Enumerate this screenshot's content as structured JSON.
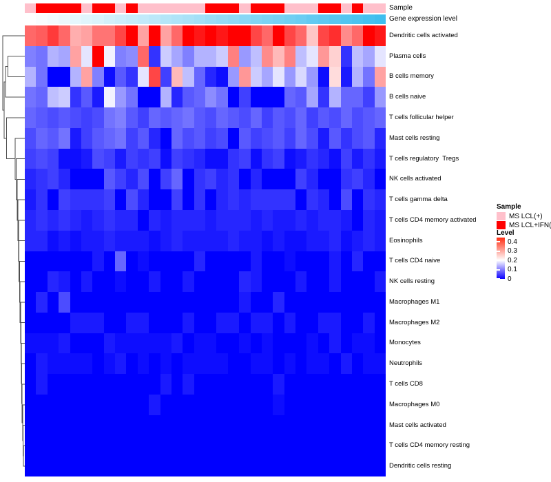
{
  "figure": {
    "annotation_row_labels": {
      "sample": "Sample",
      "gene": "Gene expression level"
    }
  },
  "legend": {
    "sample": {
      "title": "Sample",
      "items": [
        {
          "label": "MS LCL(+)",
          "color": "#FFC0CB"
        },
        {
          "label": "MS LCL+IFN(+)",
          "color": "#FF0000"
        }
      ]
    },
    "level": {
      "title": "Level",
      "ticks": [
        "0.4",
        "0.3",
        "0.2",
        "0.1",
        "0"
      ]
    }
  },
  "chart_data": {
    "type": "heatmap",
    "title": "",
    "xlabel": "",
    "ylabel": "",
    "grid": false,
    "legend_position": "right",
    "n_columns": 32,
    "column_labels_shown": false,
    "color_scale": {
      "min": 0,
      "mid_white": 0.2,
      "max": 0.42,
      "min_color": "#0000FF",
      "mid_color": "#FFFFFF",
      "max_color": "#FF0000"
    },
    "rows": [
      "Dendritic cells activated",
      "Plasma cells",
      "B cells memory",
      "B cells naive",
      "T cells follicular helper",
      "Mast cells resting",
      "T cells regulatory  Tregs",
      "NK cells activated",
      "T cells gamma delta",
      "T cells CD4 memory activated",
      "Eosinophils",
      "T cells CD4 naive",
      "NK cells resting",
      "Macrophages M1",
      "Macrophages M2",
      "Monocytes",
      "Neutrophils",
      "T cells CD8",
      "Macrophages M0",
      "Mast cells activated",
      "T cells CD4 memory resting",
      "Dendritic cells resting"
    ],
    "column_annotations": {
      "sample_color_map": {
        "MS LCL(+)": "#FFC0CB",
        "MS LCL+IFN(+)": "#FF0000"
      },
      "sample": [
        "MS LCL(+)",
        "MS LCL+IFN(+)",
        "MS LCL+IFN(+)",
        "MS LCL+IFN(+)",
        "MS LCL+IFN(+)",
        "MS LCL(+)",
        "MS LCL+IFN(+)",
        "MS LCL+IFN(+)",
        "MS LCL(+)",
        "MS LCL+IFN(+)",
        "MS LCL(+)",
        "MS LCL(+)",
        "MS LCL(+)",
        "MS LCL(+)",
        "MS LCL(+)",
        "MS LCL(+)",
        "MS LCL+IFN(+)",
        "MS LCL+IFN(+)",
        "MS LCL+IFN(+)",
        "MS LCL(+)",
        "MS LCL+IFN(+)",
        "MS LCL+IFN(+)",
        "MS LCL+IFN(+)",
        "MS LCL(+)",
        "MS LCL(+)",
        "MS LCL(+)",
        "MS LCL+IFN(+)",
        "MS LCL+IFN(+)",
        "MS LCL(+)",
        "MS LCL+IFN(+)",
        "MS LCL(+)",
        "MS LCL(+)"
      ],
      "gene_expression_level_gradient": {
        "low_color": "#FFFFFF",
        "high_color": "#3FBEEE"
      },
      "gene_expression_level": [
        0,
        0.03,
        0.06,
        0.1,
        0.13,
        0.16,
        0.19,
        0.23,
        0.26,
        0.29,
        0.32,
        0.35,
        0.39,
        0.42,
        0.45,
        0.48,
        0.52,
        0.55,
        0.58,
        0.61,
        0.65,
        0.68,
        0.71,
        0.74,
        0.77,
        0.81,
        0.84,
        0.87,
        0.9,
        0.93,
        0.97,
        1
      ]
    },
    "values": [
      [
        0.33,
        0.34,
        0.37,
        0.33,
        0.27,
        0.28,
        0.32,
        0.32,
        0.36,
        0.42,
        0.28,
        0.43,
        0.28,
        0.33,
        0.42,
        0.4,
        0.42,
        0.4,
        0.43,
        0.42,
        0.36,
        0.33,
        0.42,
        0.36,
        0.33,
        0.25,
        0.36,
        0.38,
        0.3,
        0.33,
        0.43,
        0.4
      ],
      [
        0.1,
        0.09,
        0.14,
        0.13,
        0.28,
        0.18,
        0.42,
        0.19,
        0.1,
        0.11,
        0.33,
        0.04,
        0.16,
        0.13,
        0.1,
        0.14,
        0.14,
        0.16,
        0.31,
        0.12,
        0.15,
        0.3,
        0.26,
        0.31,
        0.15,
        0.18,
        0.29,
        0.24,
        0.04,
        0.15,
        0.13,
        0.18
      ],
      [
        0.14,
        0.09,
        0.0,
        0.0,
        0.14,
        0.28,
        0.1,
        0.01,
        0.07,
        0.04,
        0.18,
        0.36,
        0.05,
        0.26,
        0.15,
        0.08,
        0.03,
        0.01,
        0.12,
        0.29,
        0.16,
        0.13,
        0.18,
        0.12,
        0.17,
        0.12,
        0.01,
        0.23,
        0.02,
        0.14,
        0.09,
        0.28
      ],
      [
        0.09,
        0.08,
        0.15,
        0.16,
        0.04,
        0.07,
        0.02,
        0.19,
        0.12,
        0.09,
        0.0,
        0.0,
        0.14,
        0.03,
        0.07,
        0.08,
        0.11,
        0.09,
        0.0,
        0.05,
        0.0,
        0.0,
        0.0,
        0.08,
        0.07,
        0.13,
        0.04,
        0.14,
        0.08,
        0.08,
        0.05,
        0.12
      ],
      [
        0.08,
        0.07,
        0.06,
        0.07,
        0.06,
        0.05,
        0.06,
        0.09,
        0.1,
        0.07,
        0.05,
        0.08,
        0.07,
        0.08,
        0.09,
        0.07,
        0.06,
        0.08,
        0.07,
        0.06,
        0.08,
        0.05,
        0.07,
        0.06,
        0.08,
        0.05,
        0.07,
        0.06,
        0.08,
        0.06,
        0.07,
        0.08
      ],
      [
        0.06,
        0.08,
        0.07,
        0.09,
        0.02,
        0.05,
        0.07,
        0.08,
        0.09,
        0.05,
        0.07,
        0.03,
        0.0,
        0.08,
        0.06,
        0.07,
        0.05,
        0.06,
        0.0,
        0.07,
        0.05,
        0.06,
        0.07,
        0.05,
        0.08,
        0.06,
        0.02,
        0.07,
        0.04,
        0.06,
        0.07,
        0.03
      ],
      [
        0.05,
        0.06,
        0.05,
        0.01,
        0.01,
        0.02,
        0.06,
        0.05,
        0.02,
        0.05,
        0.04,
        0.05,
        0.01,
        0.05,
        0.04,
        0.03,
        0.01,
        0.01,
        0.04,
        0.05,
        0.01,
        0.04,
        0.05,
        0.01,
        0.02,
        0.04,
        0.03,
        0.01,
        0.05,
        0.02,
        0.04,
        0.02
      ],
      [
        0.03,
        0.04,
        0.05,
        0.03,
        0.0,
        0.0,
        0.0,
        0.07,
        0.05,
        0.03,
        0.06,
        0.0,
        0.05,
        0.08,
        0.0,
        0.04,
        0.05,
        0.03,
        0.04,
        0.0,
        0.03,
        0.0,
        0.0,
        0.0,
        0.05,
        0.03,
        0.0,
        0.0,
        0.04,
        0.05,
        0.03,
        0.0
      ],
      [
        0.02,
        0.04,
        0.0,
        0.05,
        0.04,
        0.04,
        0.04,
        0.05,
        0.0,
        0.06,
        0.03,
        0.0,
        0.0,
        0.05,
        0.0,
        0.04,
        0.0,
        0.03,
        0.04,
        0.03,
        0.04,
        0.04,
        0.04,
        0.04,
        0.0,
        0.04,
        0.03,
        0.0,
        0.06,
        0.0,
        0.04,
        0.03
      ],
      [
        0.03,
        0.04,
        0.03,
        0.04,
        0.03,
        0.02,
        0.03,
        0.04,
        0.03,
        0.03,
        0.0,
        0.03,
        0.02,
        0.03,
        0.03,
        0.03,
        0.02,
        0.03,
        0.03,
        0.03,
        0.02,
        0.03,
        0.02,
        0.02,
        0.03,
        0.02,
        0.03,
        0.03,
        0.02,
        0.0,
        0.03,
        0.02
      ],
      [
        0.03,
        0.03,
        0.01,
        0.02,
        0.01,
        0.02,
        0.02,
        0.03,
        0.02,
        0.02,
        0.02,
        0.01,
        0.02,
        0.03,
        0.02,
        0.02,
        0.02,
        0.02,
        0.03,
        0.02,
        0.02,
        0.01,
        0.02,
        0.01,
        0.01,
        0.02,
        0.02,
        0.03,
        0.01,
        0.02,
        0.03,
        0.02
      ],
      [
        0.0,
        0.0,
        0.0,
        0.0,
        0.0,
        0.0,
        0.02,
        0.0,
        0.08,
        0.0,
        0.01,
        0.0,
        0.0,
        0.0,
        0.0,
        0.03,
        0.0,
        0.0,
        0.0,
        0.0,
        0.02,
        0.0,
        0.0,
        0.01,
        0.0,
        0.0,
        0.0,
        0.02,
        0.0,
        0.03,
        0.0,
        0.0
      ],
      [
        0.0,
        0.0,
        0.03,
        0.02,
        0.0,
        0.02,
        0.0,
        0.0,
        0.01,
        0.0,
        0.0,
        0.02,
        0.0,
        0.0,
        0.02,
        0.0,
        0.0,
        0.0,
        0.0,
        0.03,
        0.02,
        0.0,
        0.0,
        0.0,
        0.02,
        0.0,
        0.0,
        0.02,
        0.0,
        0.0,
        0.0,
        0.02
      ],
      [
        0.0,
        0.03,
        0.0,
        0.06,
        0.0,
        0.0,
        0.0,
        0.0,
        0.0,
        0.0,
        0.0,
        0.0,
        0.0,
        0.0,
        0.0,
        0.0,
        0.0,
        0.0,
        0.0,
        0.02,
        0.0,
        0.0,
        0.03,
        0.0,
        0.0,
        0.0,
        0.0,
        0.0,
        0.0,
        0.0,
        0.0,
        0.0
      ],
      [
        0.0,
        0.0,
        0.0,
        0.0,
        0.02,
        0.02,
        0.02,
        0.0,
        0.0,
        0.02,
        0.02,
        0.0,
        0.0,
        0.0,
        0.02,
        0.0,
        0.0,
        0.02,
        0.02,
        0.0,
        0.02,
        0.02,
        0.0,
        0.02,
        0.0,
        0.0,
        0.02,
        0.02,
        0.0,
        0.0,
        0.02,
        0.0
      ],
      [
        0.01,
        0.01,
        0.01,
        0.02,
        0.0,
        0.0,
        0.0,
        0.02,
        0.01,
        0.01,
        0.01,
        0.01,
        0.01,
        0.02,
        0.0,
        0.01,
        0.01,
        0.0,
        0.0,
        0.01,
        0.0,
        0.01,
        0.0,
        0.0,
        0.0,
        0.01,
        0.0,
        0.02,
        0.0,
        0.01,
        0.01,
        0.0
      ],
      [
        0.0,
        0.02,
        0.01,
        0.01,
        0.01,
        0.01,
        0.0,
        0.01,
        0.02,
        0.0,
        0.01,
        0.0,
        0.01,
        0.0,
        0.01,
        0.01,
        0.01,
        0.01,
        0.0,
        0.0,
        0.01,
        0.01,
        0.0,
        0.01,
        0.0,
        0.01,
        0.01,
        0.0,
        0.02,
        0.0,
        0.01,
        0.01
      ],
      [
        0.0,
        0.02,
        0.0,
        0.0,
        0.0,
        0.0,
        0.0,
        0.0,
        0.0,
        0.0,
        0.0,
        0.0,
        0.02,
        0.0,
        0.02,
        0.0,
        0.0,
        0.0,
        0.0,
        0.0,
        0.0,
        0.0,
        0.02,
        0.0,
        0.0,
        0.0,
        0.0,
        0.0,
        0.0,
        0.0,
        0.0,
        0.0
      ],
      [
        0.0,
        0.0,
        0.0,
        0.0,
        0.0,
        0.0,
        0.0,
        0.0,
        0.0,
        0.0,
        0.0,
        0.02,
        0.0,
        0.0,
        0.0,
        0.0,
        0.0,
        0.0,
        0.0,
        0.0,
        0.0,
        0.0,
        0.01,
        0.0,
        0.0,
        0.0,
        0.0,
        0.0,
        0.0,
        0.0,
        0.0,
        0.0
      ],
      [
        0.0,
        0.0,
        0.0,
        0.0,
        0.0,
        0.0,
        0.0,
        0.0,
        0.0,
        0.0,
        0.0,
        0.0,
        0.0,
        0.0,
        0.0,
        0.0,
        0.0,
        0.0,
        0.0,
        0.0,
        0.0,
        0.0,
        0.0,
        0.0,
        0.0,
        0.0,
        0.0,
        0.0,
        0.0,
        0.0,
        0.0,
        0.0
      ],
      [
        0.0,
        0.0,
        0.0,
        0.0,
        0.0,
        0.0,
        0.0,
        0.0,
        0.0,
        0.0,
        0.0,
        0.0,
        0.0,
        0.0,
        0.0,
        0.0,
        0.0,
        0.0,
        0.0,
        0.0,
        0.0,
        0.0,
        0.0,
        0.0,
        0.0,
        0.0,
        0.0,
        0.0,
        0.0,
        0.0,
        0.0,
        0.0
      ],
      [
        0.0,
        0.0,
        0.0,
        0.0,
        0.0,
        0.0,
        0.0,
        0.0,
        0.0,
        0.0,
        0.0,
        0.0,
        0.0,
        0.0,
        0.0,
        0.0,
        0.0,
        0.0,
        0.0,
        0.0,
        0.0,
        0.0,
        0.0,
        0.0,
        0.0,
        0.0,
        0.0,
        0.0,
        0.0,
        0.0,
        0.0,
        0.0
      ]
    ]
  }
}
